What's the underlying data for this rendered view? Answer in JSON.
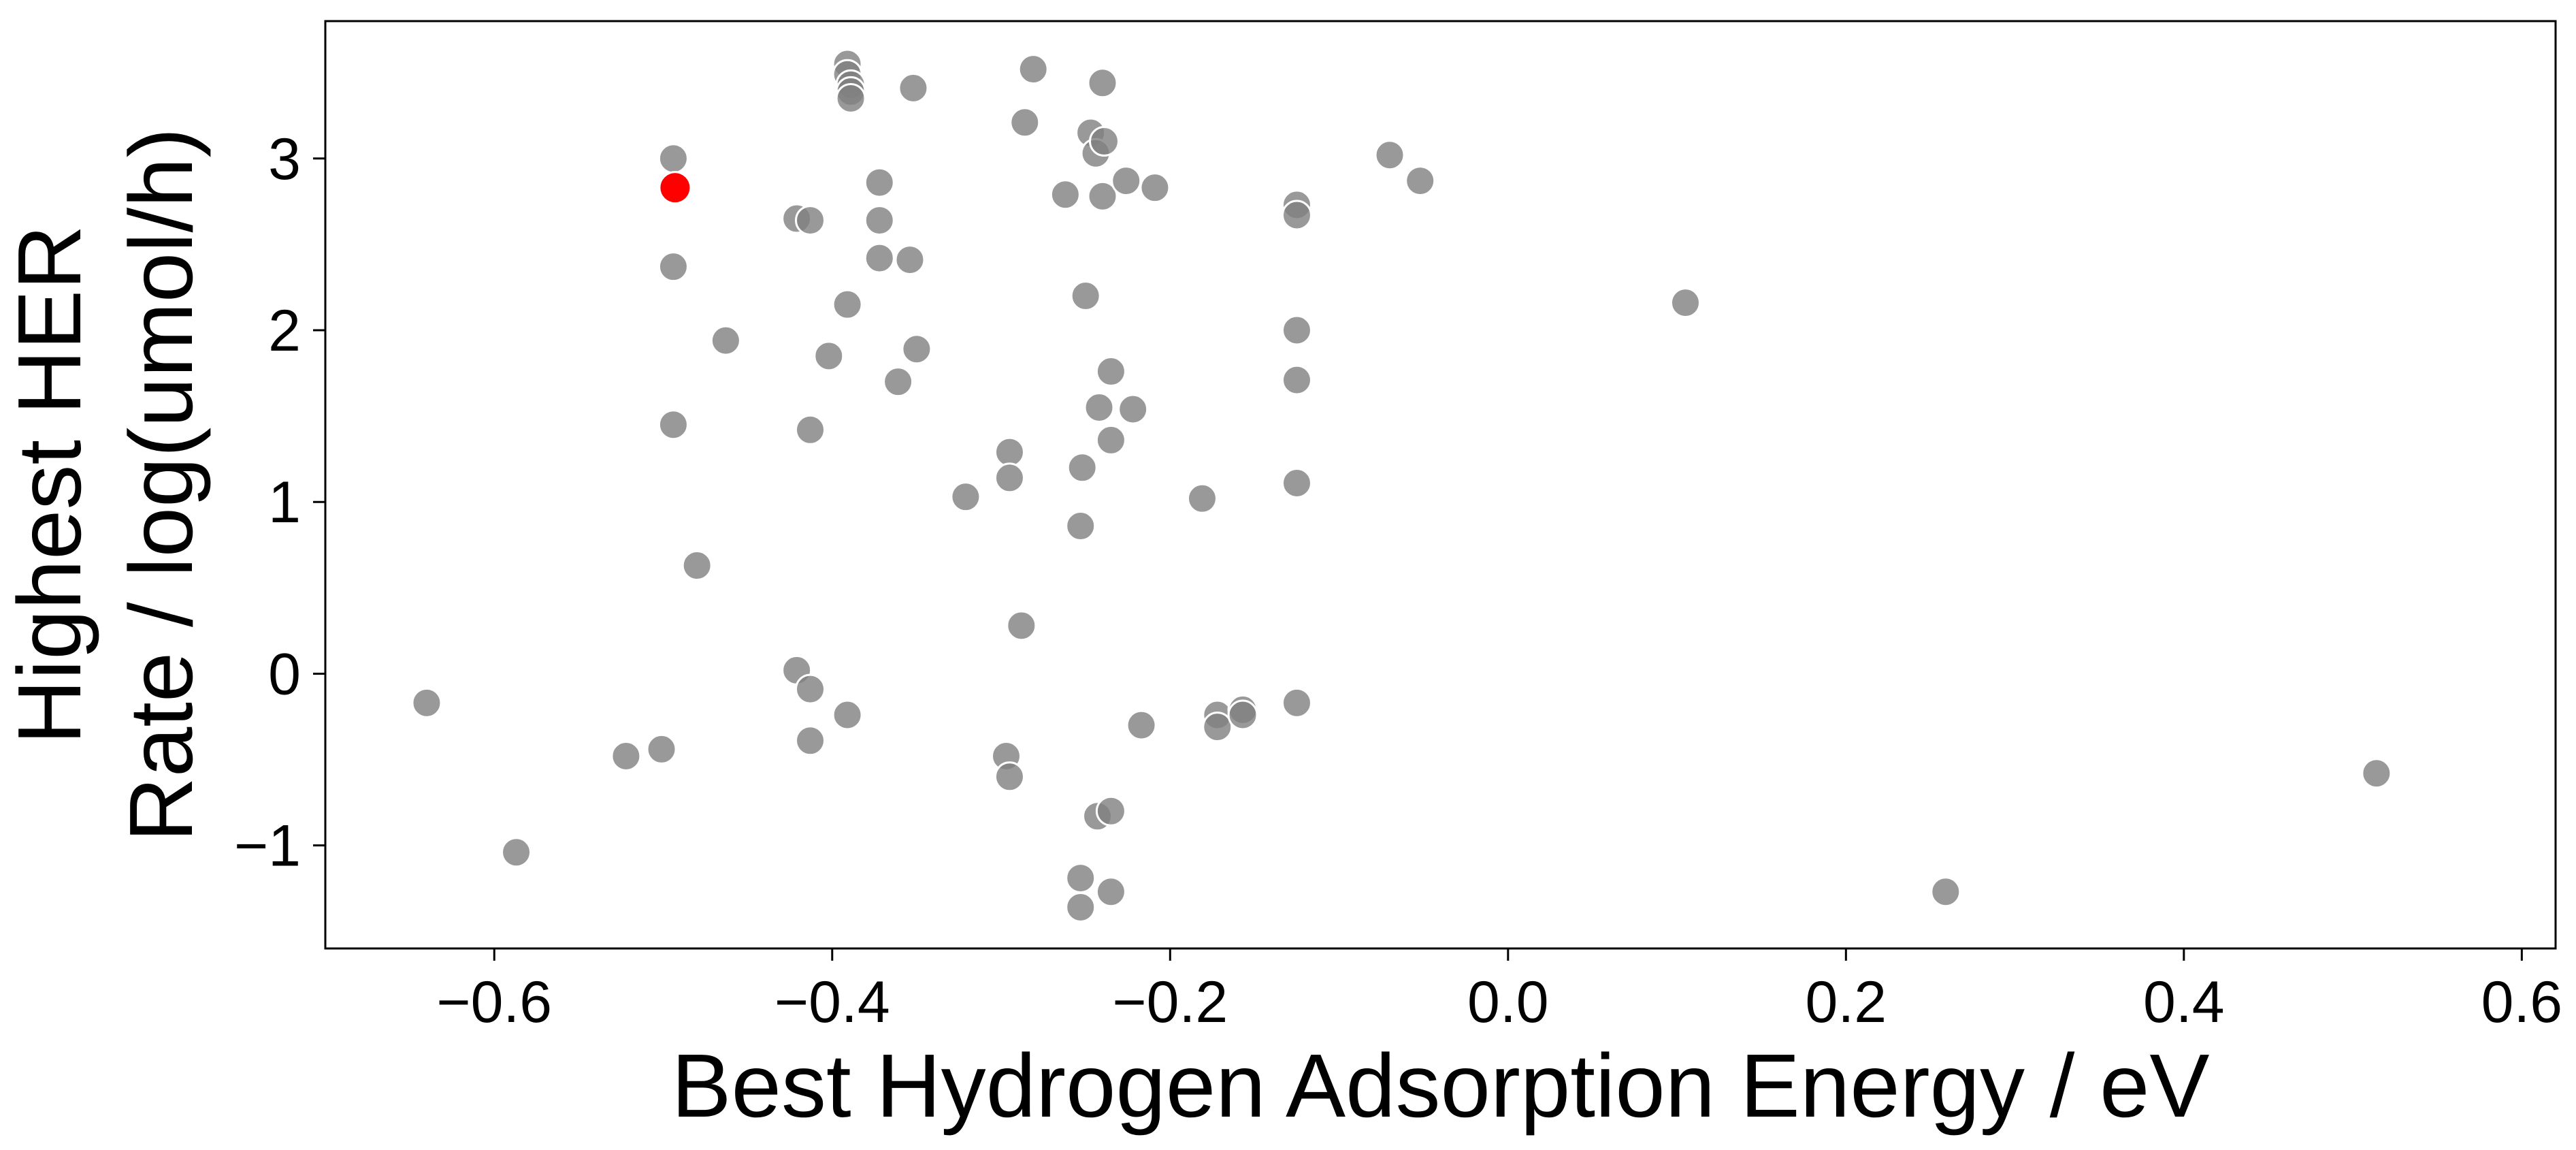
{
  "chart_data": {
    "type": "scatter",
    "xlabel": "Best Hydrogen Adsorption Energy / eV",
    "ylabel_lines": [
      "Highest HER",
      "Rate / log(umol/h)"
    ],
    "xlim": [
      -0.7,
      0.62
    ],
    "ylim": [
      -1.6,
      3.8
    ],
    "xticks": [
      -0.6,
      -0.4,
      -0.2,
      0.0,
      0.2,
      0.4,
      0.6
    ],
    "xtick_labels": [
      "−0.6",
      "−0.4",
      "−0.2",
      "0.0",
      "0.2",
      "0.4",
      "0.6"
    ],
    "yticks": [
      -1,
      0,
      1,
      2,
      3
    ],
    "ytick_labels": [
      "−1",
      "0",
      "1",
      "2",
      "3"
    ],
    "grid": false,
    "series": [
      {
        "color": "#808080",
        "opacity": 0.8,
        "points": [
          [
            -0.64,
            -0.17
          ],
          [
            -0.587,
            -1.04
          ],
          [
            -0.522,
            -0.48
          ],
          [
            -0.501,
            -0.44
          ],
          [
            -0.494,
            3.0
          ],
          [
            -0.494,
            2.37
          ],
          [
            -0.494,
            1.45
          ],
          [
            -0.48,
            0.63
          ],
          [
            -0.463,
            1.94
          ],
          [
            -0.421,
            2.65
          ],
          [
            -0.413,
            2.64
          ],
          [
            -0.413,
            1.42
          ],
          [
            -0.421,
            0.02
          ],
          [
            -0.413,
            -0.09
          ],
          [
            -0.413,
            -0.39
          ],
          [
            -0.391,
            -0.24
          ],
          [
            -0.391,
            3.55
          ],
          [
            -0.391,
            3.49
          ],
          [
            -0.389,
            3.43
          ],
          [
            -0.389,
            3.39
          ],
          [
            -0.389,
            3.35
          ],
          [
            -0.391,
            2.15
          ],
          [
            -0.402,
            1.85
          ],
          [
            -0.372,
            2.86
          ],
          [
            -0.372,
            2.64
          ],
          [
            -0.372,
            2.42
          ],
          [
            -0.354,
            2.41
          ],
          [
            -0.352,
            3.41
          ],
          [
            -0.35,
            1.89
          ],
          [
            -0.361,
            1.7
          ],
          [
            -0.321,
            1.03
          ],
          [
            -0.295,
            1.29
          ],
          [
            -0.295,
            1.14
          ],
          [
            -0.288,
            0.28
          ],
          [
            -0.297,
            -0.48
          ],
          [
            -0.295,
            -0.6
          ],
          [
            -0.281,
            3.52
          ],
          [
            -0.286,
            3.21
          ],
          [
            -0.262,
            2.79
          ],
          [
            -0.25,
            2.2
          ],
          [
            -0.247,
            3.15
          ],
          [
            -0.244,
            3.03
          ],
          [
            -0.239,
            3.1
          ],
          [
            -0.24,
            3.44
          ],
          [
            -0.24,
            2.78
          ],
          [
            -0.226,
            2.87
          ],
          [
            -0.209,
            2.83
          ],
          [
            -0.235,
            1.76
          ],
          [
            -0.242,
            1.55
          ],
          [
            -0.222,
            1.54
          ],
          [
            -0.235,
            1.36
          ],
          [
            -0.252,
            1.2
          ],
          [
            -0.253,
            0.86
          ],
          [
            -0.217,
            -0.3
          ],
          [
            -0.243,
            -0.83
          ],
          [
            -0.235,
            -0.8
          ],
          [
            -0.253,
            -1.19
          ],
          [
            -0.253,
            -1.36
          ],
          [
            -0.235,
            -1.27
          ],
          [
            -0.181,
            1.02
          ],
          [
            -0.172,
            -0.24
          ],
          [
            -0.172,
            -0.31
          ],
          [
            -0.157,
            -0.21
          ],
          [
            -0.157,
            -0.24
          ],
          [
            -0.125,
            2.73
          ],
          [
            -0.125,
            2.67
          ],
          [
            -0.125,
            2.0
          ],
          [
            -0.125,
            1.71
          ],
          [
            -0.125,
            1.11
          ],
          [
            -0.125,
            -0.17
          ],
          [
            -0.07,
            3.02
          ],
          [
            -0.052,
            2.87
          ],
          [
            0.105,
            2.16
          ],
          [
            0.259,
            -1.27
          ],
          [
            0.514,
            -0.58
          ]
        ]
      },
      {
        "color": "#ff0000",
        "opacity": 1.0,
        "points": [
          [
            -0.493,
            2.83
          ]
        ]
      }
    ]
  }
}
